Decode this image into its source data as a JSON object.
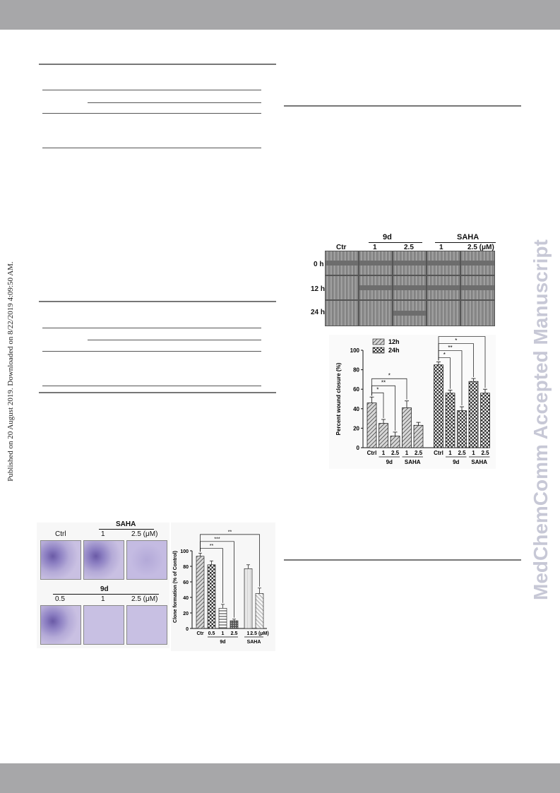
{
  "header_band": {
    "color": "#a7a7a9"
  },
  "footer_band": {
    "color": "#a7a7a9"
  },
  "side_note": "Published on 20 August 2019. Downloaded on 8/22/2019 4:09:50 AM.",
  "watermark": "MedChemComm Accepted Manuscript",
  "wound_panel": {
    "group_9d": "9d",
    "group_saha": "SAHA",
    "col_labels": [
      "Ctr",
      "1",
      "2.5",
      "1",
      "2.5 (μM)"
    ],
    "row_labels": [
      "0 h",
      "12 h",
      "24 h"
    ]
  },
  "clone_panel": {
    "top_group": "SAHA",
    "top_labels": [
      "Ctrl",
      "1",
      "2.5  (μM)"
    ],
    "bottom_group": "9d",
    "bottom_labels": [
      "0.5",
      "1",
      "2.5  (μM)"
    ]
  },
  "chart_data": [
    {
      "type": "bar",
      "title": "",
      "ylabel": "Percent wound closure (%)",
      "ylim": [
        0,
        100
      ],
      "yticks": [
        0,
        20,
        40,
        60,
        80,
        100
      ],
      "legend": [
        "12h",
        "24h"
      ],
      "legend_position": "top-left",
      "x_labels": [
        "Ctrl",
        "1",
        "2.5",
        "1",
        "2.5",
        "Ctrl",
        "1",
        "2.5",
        "1",
        "2.5"
      ],
      "group_labels": [
        "9d",
        "SAHA",
        "9d",
        "SAHA"
      ],
      "series": [
        {
          "name": "12h",
          "values": [
            46,
            25,
            12,
            41,
            23
          ]
        },
        {
          "name": "24h",
          "values": [
            85,
            56,
            38,
            68,
            56
          ]
        }
      ],
      "errors": {
        "12h": [
          6,
          4,
          4,
          7,
          3
        ],
        "24h": [
          3,
          3,
          4,
          3,
          4
        ]
      },
      "significance": [
        {
          "series": "12h",
          "marks": [
            "*",
            "**",
            "*"
          ]
        },
        {
          "series": "24h",
          "marks": [
            "*",
            "**",
            "*",
            "*"
          ]
        }
      ]
    },
    {
      "type": "bar",
      "title": "",
      "ylabel": "Clone formation (% of Control)",
      "ylim": [
        0,
        100
      ],
      "yticks": [
        0,
        20,
        40,
        60,
        80,
        100
      ],
      "x_labels": [
        "Ctr",
        "0.5",
        "1",
        "2.5",
        "1",
        "2.5 (μM)"
      ],
      "group_labels": [
        "9d",
        "SAHA"
      ],
      "values": [
        93,
        82,
        26,
        10,
        77,
        45
      ],
      "errors": [
        4,
        5,
        5,
        2,
        5,
        7
      ],
      "significance": [
        "**",
        "***",
        "**"
      ]
    }
  ]
}
